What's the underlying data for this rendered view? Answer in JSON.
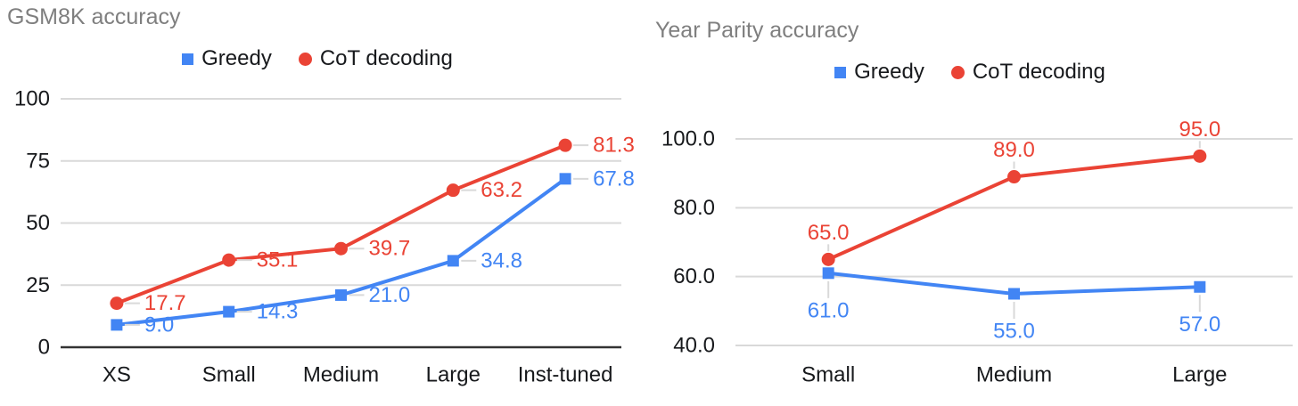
{
  "colors": {
    "greedy": "#4285F4",
    "cot": "#EA4335",
    "grid": "#d9d9d9",
    "axis_baseline": "#333333",
    "tick_text": "#17191c",
    "title_text": "#7f7f7f",
    "label_connector": "#d9d9d9",
    "background": "#ffffff"
  },
  "chart_data": [
    {
      "type": "line",
      "title": "GSM8K accuracy",
      "categories": [
        "XS",
        "Small",
        "Medium",
        "Large",
        "Inst-tuned"
      ],
      "series": [
        {
          "name": "Greedy",
          "color": "#4285F4",
          "marker": "square",
          "values": [
            9.0,
            14.3,
            21.0,
            34.8,
            67.8
          ],
          "labels": [
            "9.0",
            "14.3",
            "21.0",
            "34.8",
            "67.8"
          ],
          "label_position": "right"
        },
        {
          "name": "CoT decoding",
          "color": "#EA4335",
          "marker": "circle",
          "values": [
            17.7,
            35.1,
            39.7,
            63.2,
            81.3
          ],
          "labels": [
            "17.7",
            "35.1",
            "39.7",
            "63.2",
            "81.3"
          ],
          "label_position": "right"
        }
      ],
      "ylim": [
        0,
        100
      ],
      "ytick_values": [
        0,
        25,
        50,
        75,
        100
      ],
      "ytick_labels": [
        "0",
        "25",
        "50",
        "75",
        "100"
      ],
      "baseline_value": 0,
      "grid": true,
      "legend_position": "top",
      "data_labels": true
    },
    {
      "type": "line",
      "title": "Year Parity accuracy",
      "categories": [
        "Small",
        "Medium",
        "Large"
      ],
      "series": [
        {
          "name": "Greedy",
          "color": "#4285F4",
          "marker": "square",
          "values": [
            61.0,
            55.0,
            57.0
          ],
          "labels": [
            "61.0",
            "55.0",
            "57.0"
          ],
          "label_position": "below"
        },
        {
          "name": "CoT decoding",
          "color": "#EA4335",
          "marker": "circle",
          "values": [
            65.0,
            89.0,
            95.0
          ],
          "labels": [
            "65.0",
            "89.0",
            "95.0"
          ],
          "label_position": "above"
        }
      ],
      "ylim": [
        40,
        100
      ],
      "ytick_values": [
        40,
        60,
        80,
        100
      ],
      "ytick_labels": [
        "40.0",
        "60.0",
        "80.0",
        "100.0"
      ],
      "baseline_value": null,
      "grid": true,
      "legend_position": "top",
      "data_labels": true
    }
  ]
}
